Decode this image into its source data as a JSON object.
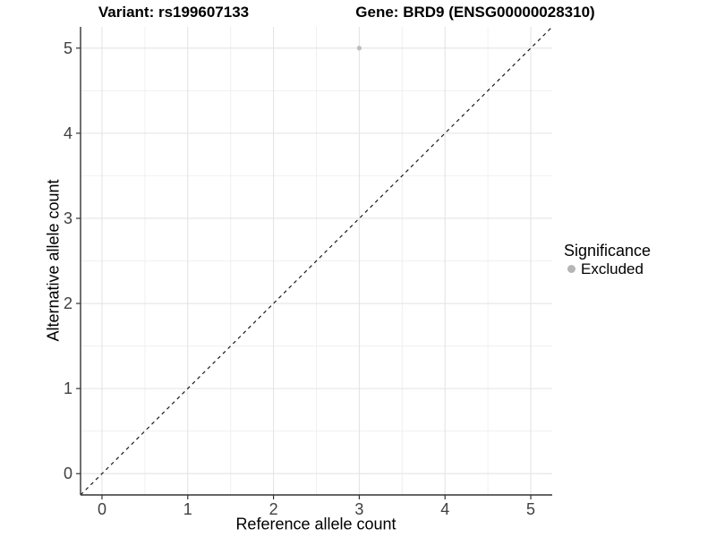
{
  "figure": {
    "titles": {
      "variant": "Variant: rs199607133",
      "gene": "Gene: BRD9 (ENSG00000028310)"
    }
  },
  "axes": {
    "x_label": "Reference allele count",
    "y_label": "Alternative allele count"
  },
  "legend": {
    "title": "Significance",
    "position": "right",
    "items": [
      {
        "label": "Excluded",
        "color": "#b5b5b5"
      }
    ]
  },
  "colors": {
    "background": "#ffffff",
    "grid_major": "#e4e4e4",
    "grid_minor": "#f0f0f0",
    "axis_line": "#333333",
    "tick_text": "#404040",
    "diagonal_line": "#1a1a1a",
    "point": "#bdbdbd"
  },
  "chart_data": {
    "type": "scatter",
    "title": "Variant: rs199607133 | Gene: BRD9 (ENSG00000028310)",
    "xlabel": "Reference allele count",
    "ylabel": "Alternative allele count",
    "xlim": [
      -0.25,
      5.25
    ],
    "ylim": [
      -0.25,
      5.25
    ],
    "xticks": [
      0,
      1,
      2,
      3,
      4,
      5
    ],
    "yticks": [
      0,
      1,
      2,
      3,
      4,
      5
    ],
    "grid": "major and minor (0.5 steps)",
    "legend_position": "right",
    "series": [
      {
        "name": "Excluded",
        "color": "#bdbdbd",
        "points": [
          {
            "x": 3,
            "y": 5
          }
        ]
      }
    ],
    "reference_line": {
      "type": "identity y=x",
      "style": "dashed",
      "color": "#1a1a1a"
    }
  }
}
